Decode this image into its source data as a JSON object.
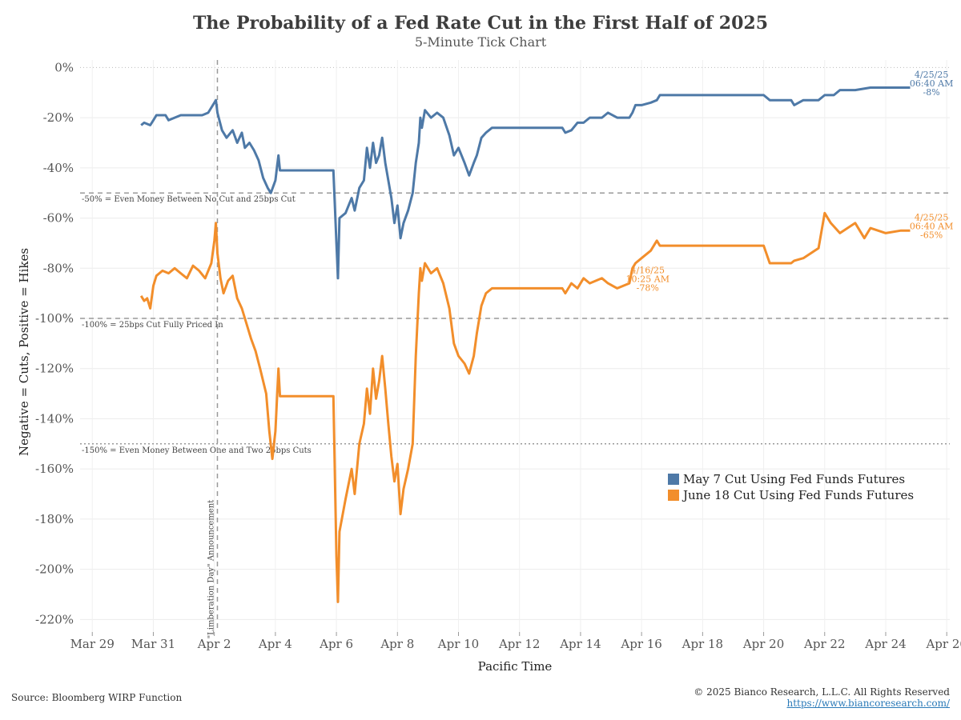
{
  "header": {
    "title": "The Probability of a Fed Rate Cut in the First Half of 2025",
    "subtitle": "5-Minute Tick Chart"
  },
  "footer": {
    "source": "Source: Bloomberg WIRP Function",
    "copyright": "© 2025 Bianco Research, L.L.C. All Rights Reserved",
    "url": "https://www.biancoresearch.com/"
  },
  "chart_data": {
    "type": "line",
    "title": "The Probability of a Fed Rate Cut in the First Half of 2025",
    "subtitle": "5-Minute Tick Chart",
    "xlabel": "Pacific Time",
    "ylabel": "Negative = Cuts, Positive = Hikes",
    "x_unit": "days (March/April 2025, Pacific Time)",
    "xlim": [
      28.6,
      57.1
    ],
    "ylim": [
      -225,
      3
    ],
    "x_ticks": [
      {
        "value": 29,
        "label": "Mar 29"
      },
      {
        "value": 31,
        "label": "Mar 31"
      },
      {
        "value": 33,
        "label": "Apr 2"
      },
      {
        "value": 35,
        "label": "Apr 4"
      },
      {
        "value": 37,
        "label": "Apr 6"
      },
      {
        "value": 39,
        "label": "Apr 8"
      },
      {
        "value": 41,
        "label": "Apr 10"
      },
      {
        "value": 43,
        "label": "Apr 12"
      },
      {
        "value": 45,
        "label": "Apr 14"
      },
      {
        "value": 47,
        "label": "Apr 16"
      },
      {
        "value": 49,
        "label": "Apr 18"
      },
      {
        "value": 51,
        "label": "Apr 20"
      },
      {
        "value": 53,
        "label": "Apr 22"
      },
      {
        "value": 55,
        "label": "Apr 24"
      },
      {
        "value": 57,
        "label": "Apr 26"
      }
    ],
    "y_ticks": [
      {
        "value": 0,
        "label": "0%"
      },
      {
        "value": -20,
        "label": "-20%"
      },
      {
        "value": -40,
        "label": "-40%"
      },
      {
        "value": -60,
        "label": "-60%"
      },
      {
        "value": -80,
        "label": "-80%"
      },
      {
        "value": -100,
        "label": "-100%"
      },
      {
        "value": -120,
        "label": "-120%"
      },
      {
        "value": -140,
        "label": "-140%"
      },
      {
        "value": -160,
        "label": "-160%"
      },
      {
        "value": -180,
        "label": "-180%"
      },
      {
        "value": -200,
        "label": "-200%"
      },
      {
        "value": -220,
        "label": "-220%"
      }
    ],
    "grid": true,
    "legend_position": "bottom-right",
    "reference_lines": [
      {
        "y": -50,
        "label": "-50% = Even Money Between No Cut and 25bps Cut",
        "style": "dashed"
      },
      {
        "y": -100,
        "label": "-100% = 25bps Cut Fully Priced In",
        "style": "dashed"
      },
      {
        "y": -150,
        "label": "-150% = Even Money Between One and Two 25bps Cuts",
        "style": "dotted"
      }
    ],
    "event_line": {
      "x": 33.1,
      "label": "\"Limberation Day\" Announcement"
    },
    "series": [
      {
        "name": "May 7 Cut Using Fed Funds Futures",
        "color": "#4e79a7",
        "points": [
          [
            30.6,
            -23
          ],
          [
            30.7,
            -22
          ],
          [
            30.9,
            -23
          ],
          [
            31.0,
            -21
          ],
          [
            31.1,
            -19
          ],
          [
            31.4,
            -19
          ],
          [
            31.5,
            -21
          ],
          [
            31.7,
            -20
          ],
          [
            31.9,
            -19
          ],
          [
            32.3,
            -19
          ],
          [
            32.6,
            -19
          ],
          [
            32.8,
            -18
          ],
          [
            32.95,
            -15
          ],
          [
            33.05,
            -13
          ],
          [
            33.1,
            -18
          ],
          [
            33.25,
            -25
          ],
          [
            33.4,
            -28
          ],
          [
            33.6,
            -25
          ],
          [
            33.75,
            -30
          ],
          [
            33.9,
            -26
          ],
          [
            34.0,
            -32
          ],
          [
            34.15,
            -30
          ],
          [
            34.3,
            -33
          ],
          [
            34.45,
            -37
          ],
          [
            34.6,
            -44
          ],
          [
            34.75,
            -48
          ],
          [
            34.85,
            -50
          ],
          [
            35.0,
            -45
          ],
          [
            35.1,
            -35
          ],
          [
            35.15,
            -41
          ],
          [
            35.5,
            -41
          ],
          [
            36.0,
            -41
          ],
          [
            36.5,
            -41
          ],
          [
            36.9,
            -41
          ],
          [
            37.0,
            -70
          ],
          [
            37.05,
            -84
          ],
          [
            37.1,
            -60
          ],
          [
            37.3,
            -58
          ],
          [
            37.5,
            -52
          ],
          [
            37.6,
            -57
          ],
          [
            37.75,
            -48
          ],
          [
            37.9,
            -45
          ],
          [
            38.0,
            -32
          ],
          [
            38.1,
            -40
          ],
          [
            38.2,
            -30
          ],
          [
            38.3,
            -38
          ],
          [
            38.4,
            -35
          ],
          [
            38.5,
            -28
          ],
          [
            38.6,
            -38
          ],
          [
            38.7,
            -45
          ],
          [
            38.8,
            -52
          ],
          [
            38.9,
            -62
          ],
          [
            39.0,
            -55
          ],
          [
            39.1,
            -68
          ],
          [
            39.2,
            -62
          ],
          [
            39.35,
            -57
          ],
          [
            39.5,
            -50
          ],
          [
            39.6,
            -38
          ],
          [
            39.7,
            -30
          ],
          [
            39.75,
            -20
          ],
          [
            39.8,
            -24
          ],
          [
            39.9,
            -17
          ],
          [
            40.1,
            -20
          ],
          [
            40.3,
            -18
          ],
          [
            40.5,
            -20
          ],
          [
            40.7,
            -27
          ],
          [
            40.85,
            -35
          ],
          [
            41.0,
            -32
          ],
          [
            41.2,
            -38
          ],
          [
            41.35,
            -43
          ],
          [
            41.5,
            -38
          ],
          [
            41.6,
            -35
          ],
          [
            41.75,
            -28
          ],
          [
            41.9,
            -26
          ],
          [
            42.1,
            -24
          ],
          [
            43.0,
            -24
          ],
          [
            44.0,
            -24
          ],
          [
            44.4,
            -24
          ],
          [
            44.5,
            -26
          ],
          [
            44.7,
            -25
          ],
          [
            44.9,
            -22
          ],
          [
            45.1,
            -22
          ],
          [
            45.3,
            -20
          ],
          [
            45.7,
            -20
          ],
          [
            45.9,
            -18
          ],
          [
            46.2,
            -20
          ],
          [
            46.6,
            -20
          ],
          [
            46.7,
            -18
          ],
          [
            46.8,
            -15
          ],
          [
            47.0,
            -15
          ],
          [
            47.3,
            -14
          ],
          [
            47.5,
            -13
          ],
          [
            47.6,
            -11
          ],
          [
            48.0,
            -11
          ],
          [
            49.0,
            -11
          ],
          [
            50.0,
            -11
          ],
          [
            51.0,
            -11
          ],
          [
            51.2,
            -13
          ],
          [
            51.9,
            -13
          ],
          [
            52.0,
            -15
          ],
          [
            52.3,
            -13
          ],
          [
            52.8,
            -13
          ],
          [
            53.0,
            -11
          ],
          [
            53.3,
            -11
          ],
          [
            53.5,
            -9
          ],
          [
            54.0,
            -9
          ],
          [
            54.5,
            -8
          ],
          [
            55.0,
            -8
          ],
          [
            55.5,
            -8
          ],
          [
            55.8,
            -8
          ]
        ],
        "end_label": [
          "4/25/25",
          "06:40 AM",
          "-8%"
        ]
      },
      {
        "name": "June 18 Cut Using Fed Funds Futures",
        "color": "#f28e2b",
        "points": [
          [
            30.6,
            -91
          ],
          [
            30.7,
            -93
          ],
          [
            30.8,
            -92
          ],
          [
            30.9,
            -96
          ],
          [
            31.0,
            -87
          ],
          [
            31.1,
            -83
          ],
          [
            31.3,
            -81
          ],
          [
            31.5,
            -82
          ],
          [
            31.7,
            -80
          ],
          [
            31.9,
            -82
          ],
          [
            32.1,
            -84
          ],
          [
            32.3,
            -79
          ],
          [
            32.5,
            -81
          ],
          [
            32.7,
            -84
          ],
          [
            32.9,
            -78
          ],
          [
            33.0,
            -69
          ],
          [
            33.05,
            -62
          ],
          [
            33.1,
            -74
          ],
          [
            33.2,
            -84
          ],
          [
            33.3,
            -90
          ],
          [
            33.45,
            -85
          ],
          [
            33.6,
            -83
          ],
          [
            33.75,
            -92
          ],
          [
            33.9,
            -96
          ],
          [
            34.0,
            -100
          ],
          [
            34.2,
            -108
          ],
          [
            34.35,
            -113
          ],
          [
            34.5,
            -120
          ],
          [
            34.7,
            -130
          ],
          [
            34.8,
            -145
          ],
          [
            34.9,
            -156
          ],
          [
            35.0,
            -145
          ],
          [
            35.1,
            -120
          ],
          [
            35.15,
            -131
          ],
          [
            35.5,
            -131
          ],
          [
            36.0,
            -131
          ],
          [
            36.5,
            -131
          ],
          [
            36.9,
            -131
          ],
          [
            37.0,
            -195
          ],
          [
            37.05,
            -213
          ],
          [
            37.1,
            -185
          ],
          [
            37.3,
            -172
          ],
          [
            37.5,
            -160
          ],
          [
            37.6,
            -170
          ],
          [
            37.75,
            -150
          ],
          [
            37.9,
            -142
          ],
          [
            38.0,
            -128
          ],
          [
            38.1,
            -138
          ],
          [
            38.2,
            -120
          ],
          [
            38.3,
            -132
          ],
          [
            38.4,
            -125
          ],
          [
            38.5,
            -115
          ],
          [
            38.6,
            -128
          ],
          [
            38.7,
            -142
          ],
          [
            38.8,
            -155
          ],
          [
            38.9,
            -165
          ],
          [
            39.0,
            -158
          ],
          [
            39.1,
            -178
          ],
          [
            39.2,
            -168
          ],
          [
            39.35,
            -160
          ],
          [
            39.5,
            -150
          ],
          [
            39.6,
            -115
          ],
          [
            39.7,
            -90
          ],
          [
            39.75,
            -80
          ],
          [
            39.8,
            -85
          ],
          [
            39.9,
            -78
          ],
          [
            40.1,
            -82
          ],
          [
            40.3,
            -80
          ],
          [
            40.5,
            -86
          ],
          [
            40.7,
            -96
          ],
          [
            40.85,
            -110
          ],
          [
            41.0,
            -115
          ],
          [
            41.2,
            -118
          ],
          [
            41.35,
            -122
          ],
          [
            41.5,
            -115
          ],
          [
            41.6,
            -106
          ],
          [
            41.75,
            -95
          ],
          [
            41.9,
            -90
          ],
          [
            42.1,
            -88
          ],
          [
            43.0,
            -88
          ],
          [
            44.0,
            -88
          ],
          [
            44.4,
            -88
          ],
          [
            44.5,
            -90
          ],
          [
            44.7,
            -86
          ],
          [
            44.9,
            -88
          ],
          [
            45.1,
            -84
          ],
          [
            45.3,
            -86
          ],
          [
            45.7,
            -84
          ],
          [
            45.9,
            -86
          ],
          [
            46.2,
            -88
          ],
          [
            46.6,
            -86
          ],
          [
            46.7,
            -80
          ],
          [
            46.8,
            -78
          ],
          [
            47.0,
            -76
          ],
          [
            47.3,
            -73
          ],
          [
            47.5,
            -69
          ],
          [
            47.6,
            -71
          ],
          [
            48.0,
            -71
          ],
          [
            49.0,
            -71
          ],
          [
            50.0,
            -71
          ],
          [
            51.0,
            -71
          ],
          [
            51.2,
            -78
          ],
          [
            51.9,
            -78
          ],
          [
            52.0,
            -77
          ],
          [
            52.3,
            -76
          ],
          [
            52.8,
            -72
          ],
          [
            53.0,
            -58
          ],
          [
            53.2,
            -62
          ],
          [
            53.5,
            -66
          ],
          [
            54.0,
            -62
          ],
          [
            54.3,
            -68
          ],
          [
            54.5,
            -64
          ],
          [
            55.0,
            -66
          ],
          [
            55.5,
            -65
          ],
          [
            55.8,
            -65
          ]
        ],
        "end_label": [
          "4/25/25",
          "06:40 AM",
          "-65%"
        ],
        "mid_label": [
          "4/16/25",
          "10:25 AM",
          "-78%"
        ]
      }
    ]
  }
}
